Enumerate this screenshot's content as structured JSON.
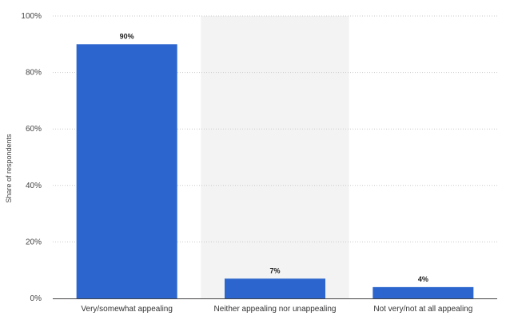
{
  "chart_data": {
    "type": "bar",
    "categories": [
      "Very/somewhat appealing",
      "Neither appealing nor unappealing",
      "Not very/not at all appealing"
    ],
    "values": [
      90,
      7,
      4
    ],
    "data_labels": [
      "90%",
      "7%",
      "4%"
    ],
    "ylabel": "Share of respondents",
    "ylim": [
      0,
      100
    ],
    "yticks": [
      "0%",
      "20%",
      "40%",
      "60%",
      "80%",
      "100%"
    ],
    "grid": true,
    "highlighted_category_index": 1,
    "colors": {
      "bar": "#2b65cd",
      "highlight_band": "#f3f3f3",
      "grid": "#c9c9c9",
      "axis": "#444444"
    }
  }
}
